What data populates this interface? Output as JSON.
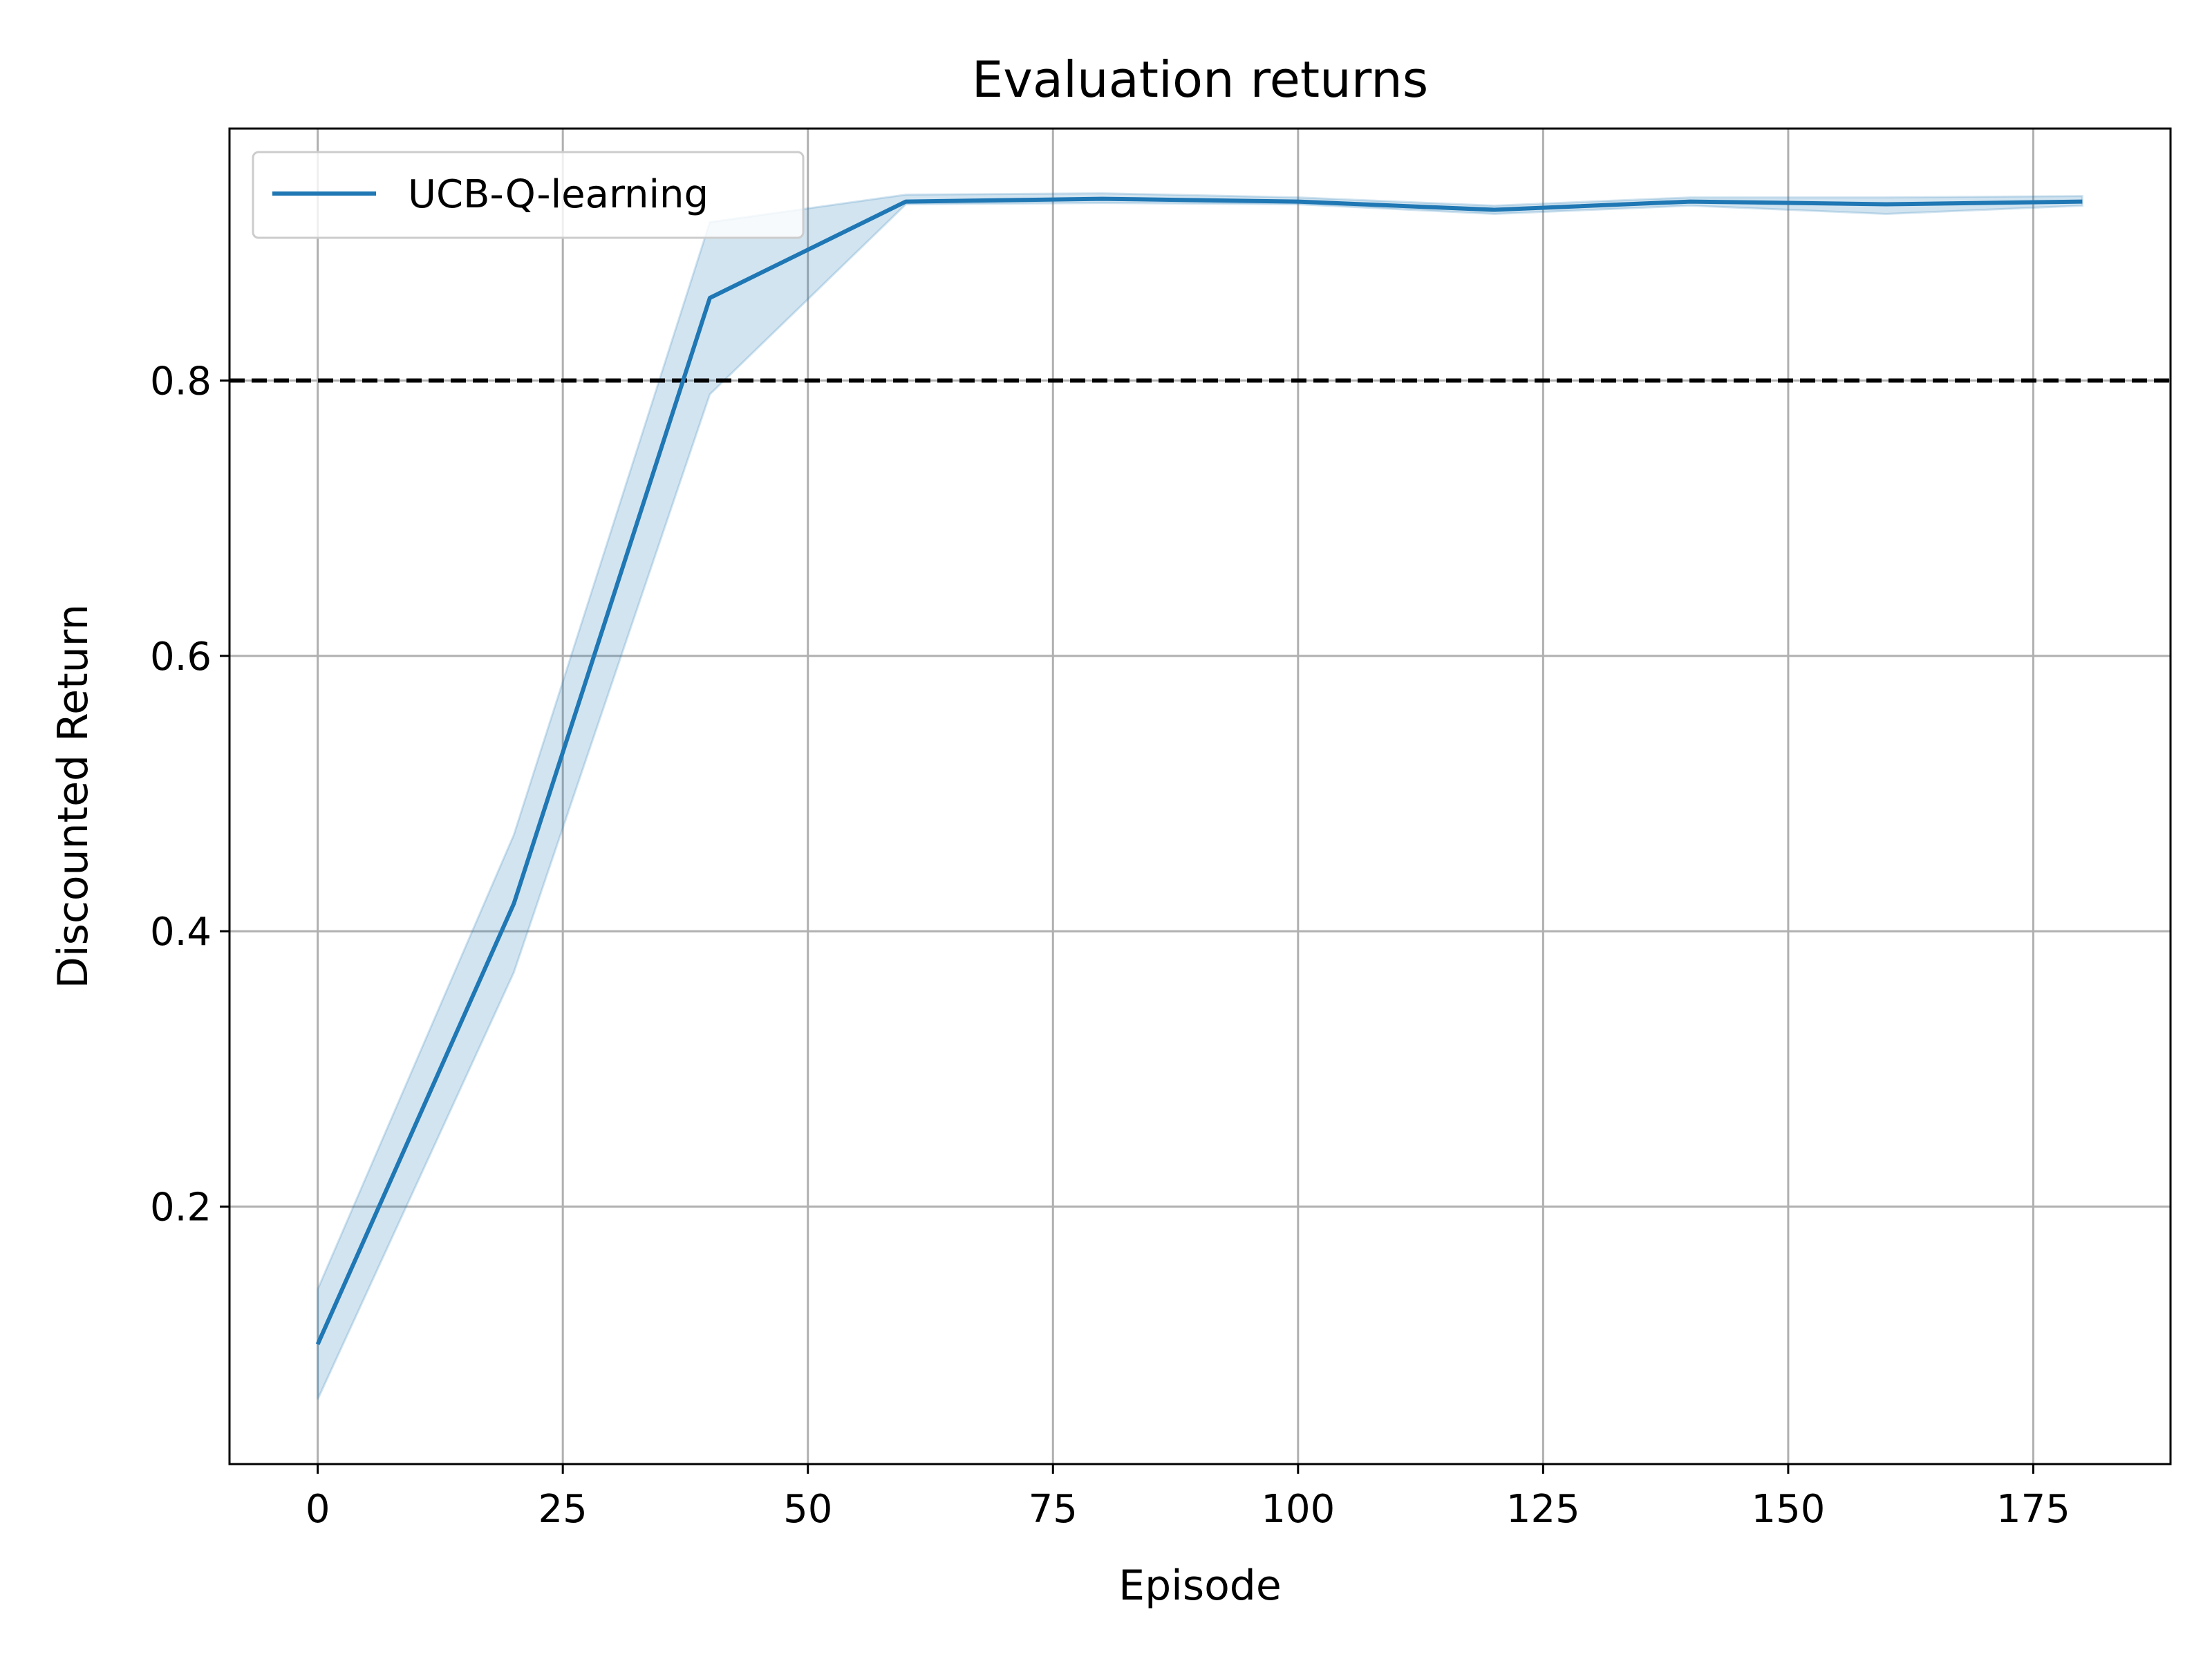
{
  "chart_data": {
    "type": "line",
    "title": "Evaluation returns",
    "xlabel": "Episode",
    "ylabel": "Discounted Return",
    "xlim": [
      -9,
      189
    ],
    "ylim": [
      0.013,
      0.983
    ],
    "xticks": [
      0,
      25,
      50,
      75,
      100,
      125,
      150,
      175
    ],
    "xtick_labels": [
      "0",
      "25",
      "50",
      "75",
      "100",
      "125",
      "150",
      "175"
    ],
    "yticks": [
      0.2,
      0.4,
      0.6,
      0.8
    ],
    "ytick_labels": [
      "0.2",
      "0.4",
      "0.6",
      "0.8"
    ],
    "grid": true,
    "legend_position": "upper-left",
    "series": [
      {
        "name": "UCB-Q-learning",
        "color": "#1f77b4",
        "x": [
          0,
          20,
          40,
          60,
          80,
          100,
          120,
          140,
          160,
          180
        ],
        "y": [
          0.1,
          0.42,
          0.86,
          0.93,
          0.932,
          0.93,
          0.924,
          0.93,
          0.928,
          0.93
        ],
        "lower": [
          0.06,
          0.37,
          0.79,
          0.928,
          0.929,
          0.928,
          0.921,
          0.927,
          0.921,
          0.927
        ],
        "upper": [
          0.14,
          0.47,
          0.915,
          0.935,
          0.936,
          0.933,
          0.927,
          0.933,
          0.933,
          0.934
        ]
      }
    ],
    "reference_line": {
      "y": 0.8,
      "style": "dashed",
      "color": "#000000"
    }
  }
}
